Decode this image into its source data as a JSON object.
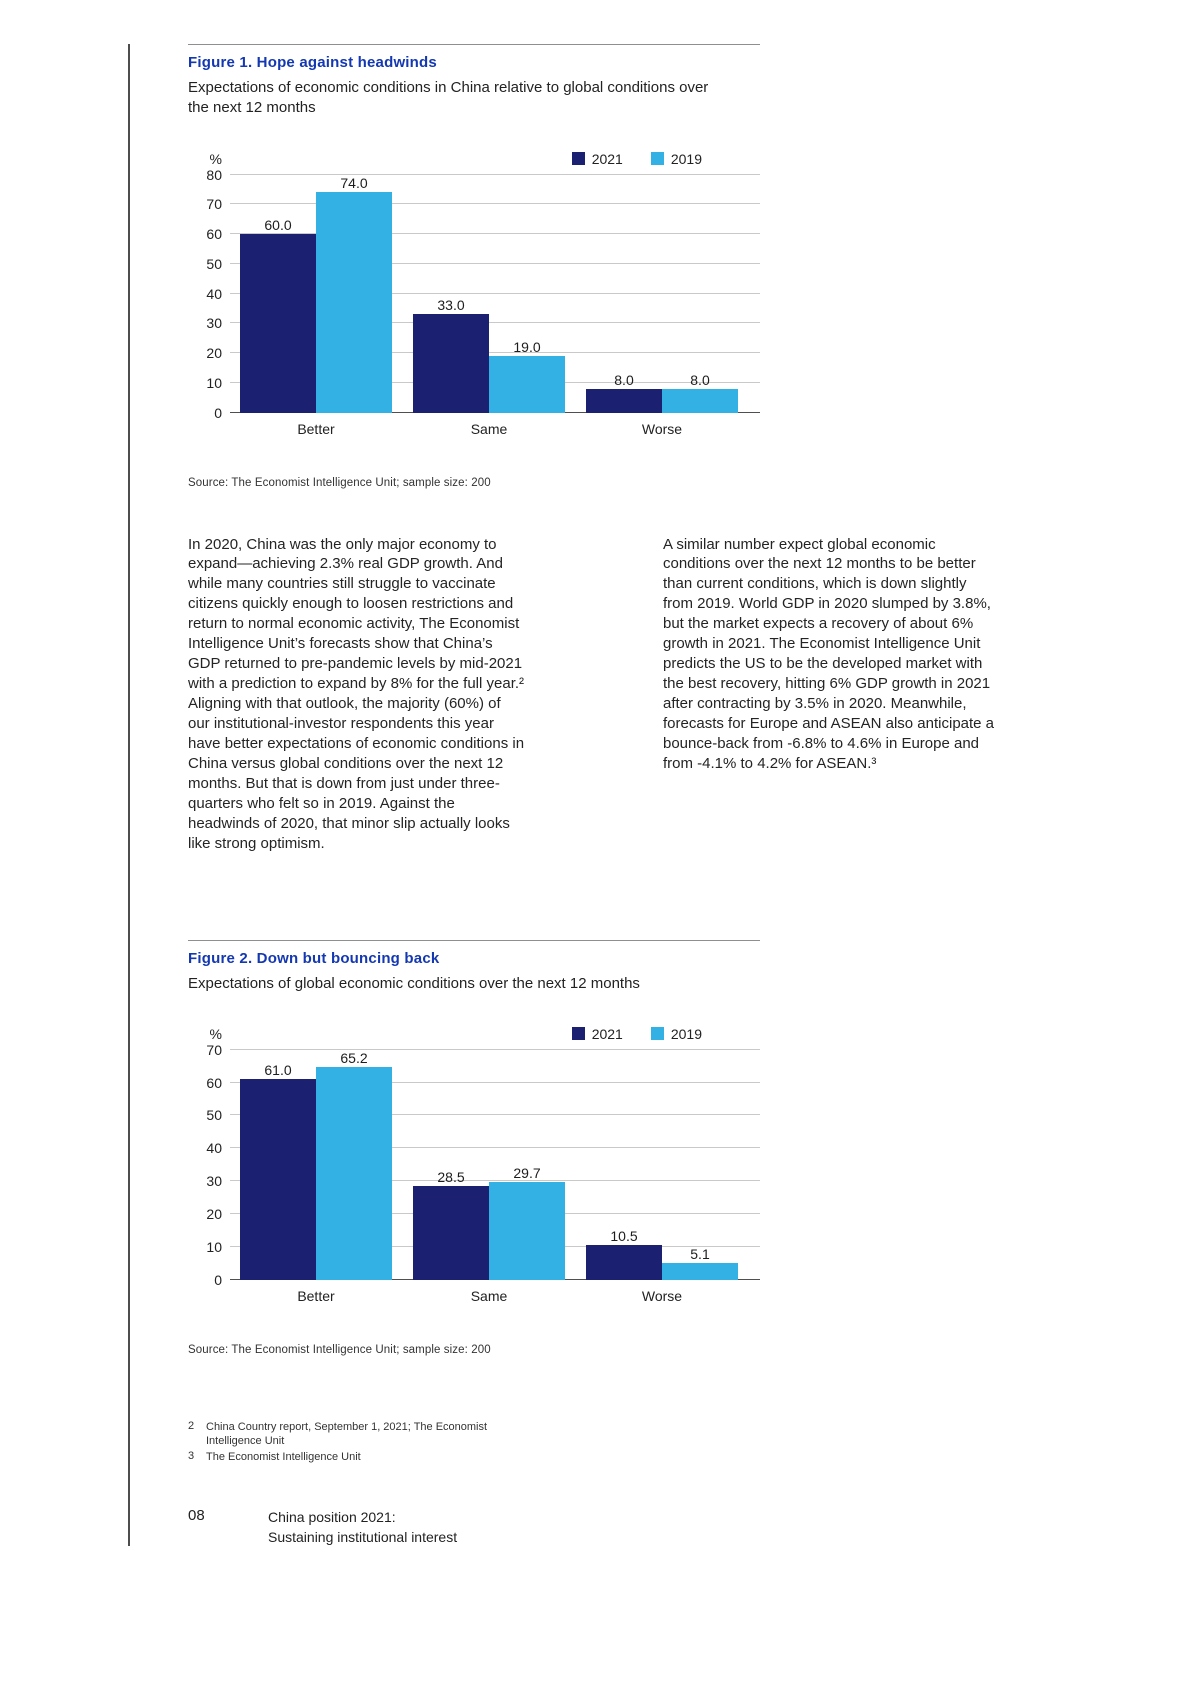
{
  "colors": {
    "navy": "#1b2071",
    "light_blue": "#33b1e5",
    "figure_title_blue": "#1438b2"
  },
  "figures": [
    {
      "subtitle": "Expectations of economic conditions in China relative to global conditions over the next 12 months",
      "source": "Source: The Economist Intelligence Unit; sample size: 200"
    },
    {
      "subtitle": "Expectations of global economic conditions over the next 12 months",
      "source": "Source: The Economist Intelligence Unit; sample size: 200"
    }
  ],
  "body": {
    "left": "In 2020, China was the only major economy to expand—achieving 2.3% real GDP growth. And while many countries still struggle to vaccinate citizens quickly enough to loosen restrictions and return to normal economic activity, The Economist Intelligence Unit’s forecasts show that China’s GDP returned to pre-pandemic levels by mid-2021 with a prediction to expand by 8% for the full year.² Aligning with that outlook, the majority (60%) of our institutional-investor respondents this year have better expectations of economic conditions in China versus global conditions over the next 12 months. But that is down from just under three-quarters who felt so in 2019. Against the headwinds of 2020, that minor slip actually looks like strong optimism.",
    "right": "A similar number expect global economic conditions over the next 12 months to be better than current conditions, which is down slightly from 2019. World GDP in 2020 slumped by 3.8%, but the market expects a recovery of about 6% growth in 2021. The Economist Intelligence Unit predicts the US to be the developed market with the best recovery, hitting 6% GDP growth in 2021 after contracting by 3.5% in 2020. Meanwhile, forecasts for Europe and ASEAN also anticipate a bounce-back from -6.8% to 4.6% in Europe and from -4.1% to 4.2% for ASEAN.³"
  },
  "footnotes": [
    {
      "num": "2",
      "text": "China Country report, September 1, 2021; The Economist Intelligence Unit"
    },
    {
      "num": "3",
      "text": "The Economist Intelligence Unit"
    }
  ],
  "footer": {
    "page_number": "08",
    "line1": "China position 2021:",
    "line2": "Sustaining institutional interest"
  },
  "chart_data": [
    {
      "type": "bar",
      "title": "Figure 1. Hope against headwinds",
      "categories": [
        "Better",
        "Same",
        "Worse"
      ],
      "series": [
        {
          "name": "2021",
          "color": "#1b2071",
          "values": [
            60.0,
            33.0,
            8.0
          ]
        },
        {
          "name": "2019",
          "color": "#33b1e5",
          "values": [
            74.0,
            19.0,
            8.0
          ]
        }
      ],
      "xlabel": "",
      "ylabel": "%",
      "ylim": [
        0,
        80
      ],
      "ytick_step": 10,
      "grid": true,
      "legend_position": "top-right"
    },
    {
      "type": "bar",
      "title": "Figure 2. Down but bouncing back",
      "categories": [
        "Better",
        "Same",
        "Worse"
      ],
      "series": [
        {
          "name": "2021",
          "color": "#1b2071",
          "values": [
            61.0,
            28.5,
            10.5
          ]
        },
        {
          "name": "2019",
          "color": "#33b1e5",
          "values": [
            65.2,
            29.7,
            5.1
          ]
        }
      ],
      "xlabel": "",
      "ylabel": "%",
      "ylim": [
        0,
        70
      ],
      "ytick_step": 10,
      "grid": true,
      "legend_position": "top-right"
    }
  ]
}
